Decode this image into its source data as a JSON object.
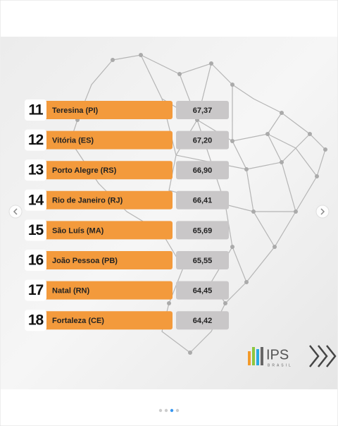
{
  "ranking": {
    "rows": [
      {
        "rank": 11,
        "name": "Teresina (PI)",
        "score": "67,37"
      },
      {
        "rank": 12,
        "name": "Vitória (ES)",
        "score": "67,20"
      },
      {
        "rank": 13,
        "name": "Porto Alegre (RS)",
        "score": "66,90"
      },
      {
        "rank": 14,
        "name": "Rio de Janeiro (RJ)",
        "score": "66,41"
      },
      {
        "rank": 15,
        "name": "São Luís (MA)",
        "score": "65,69"
      },
      {
        "rank": 16,
        "name": "João Pessoa (PB)",
        "score": "65,55"
      },
      {
        "rank": 17,
        "name": "Natal (RN)",
        "score": "64,45"
      },
      {
        "rank": 18,
        "name": "Fortaleza (CE)",
        "score": "64,42"
      }
    ]
  },
  "logo": {
    "name": "IPS",
    "subtitle": "BRASIL"
  }
}
